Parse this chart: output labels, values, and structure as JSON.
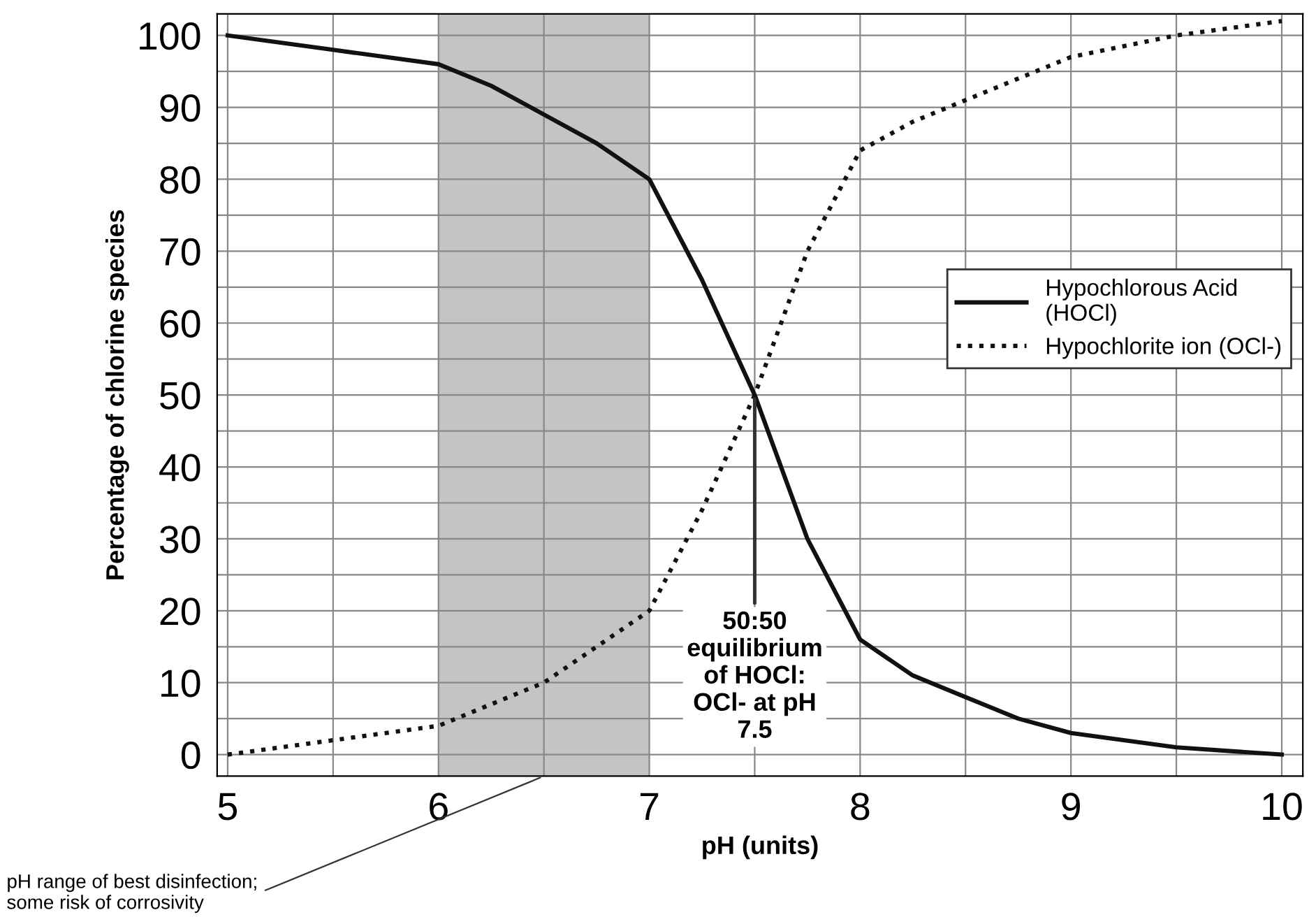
{
  "chart_data": {
    "type": "line",
    "xlabel": "pH (units)",
    "ylabel": "Percentage of chlorine species",
    "xlim": [
      4.95,
      10.1
    ],
    "ylim": [
      -3,
      103
    ],
    "xticks": [
      5,
      {
        "value": 5.5,
        "label": null
      },
      6,
      {
        "value": 6.5,
        "label": null
      },
      7,
      {
        "value": 7.5,
        "label": null
      },
      8,
      {
        "value": 8.5,
        "label": null
      },
      9,
      {
        "value": 9.5,
        "label": null
      },
      10
    ],
    "yticks": [
      0,
      {
        "value": 5,
        "label": null
      },
      10,
      {
        "value": 15,
        "label": null
      },
      20,
      {
        "value": 25,
        "label": null
      },
      30,
      {
        "value": 35,
        "label": null
      },
      40,
      {
        "value": 45,
        "label": null
      },
      50,
      {
        "value": 55,
        "label": null
      },
      60,
      {
        "value": 65,
        "label": null
      },
      70,
      {
        "value": 75,
        "label": null
      },
      80,
      {
        "value": 85,
        "label": null
      },
      90,
      {
        "value": 95,
        "label": null
      },
      100
    ],
    "grid": true,
    "legend": "right",
    "marker": "none",
    "bands": [
      {
        "axis": "x",
        "from": 6,
        "to": 7,
        "label": "pH range of best disinfection;\nsome risk of corrosivity",
        "color": "#c4c4c4"
      }
    ],
    "annotations": [
      {
        "text": "50:50\nequilibrium\nof HOCl:\nOCl- at pH\n7.5",
        "x": 7.5,
        "y": 50
      }
    ],
    "series": [
      {
        "name": "Hypochlorous Acid\n(HOCl)",
        "color": "#111111",
        "line_style": "solid",
        "x": [
          5,
          5.5,
          6,
          6.25,
          6.5,
          6.75,
          7,
          7.25,
          7.5,
          7.75,
          8,
          8.25,
          8.5,
          8.75,
          9,
          9.5,
          10
        ],
        "values": [
          100,
          98,
          96,
          93,
          89,
          85,
          80,
          66,
          50,
          30,
          16,
          11,
          8,
          5,
          3,
          1,
          0
        ]
      },
      {
        "name": "Hypochlorite ion (OCl-)",
        "color": "#111111",
        "line_style": "dotted",
        "x": [
          5,
          5.5,
          6,
          6.5,
          7,
          7.25,
          7.5,
          7.75,
          8,
          8.25,
          8.5,
          9,
          9.5,
          10
        ],
        "values": [
          0,
          2,
          4,
          10,
          20,
          34,
          50,
          70,
          84,
          88,
          91,
          97,
          100,
          102
        ]
      }
    ]
  }
}
